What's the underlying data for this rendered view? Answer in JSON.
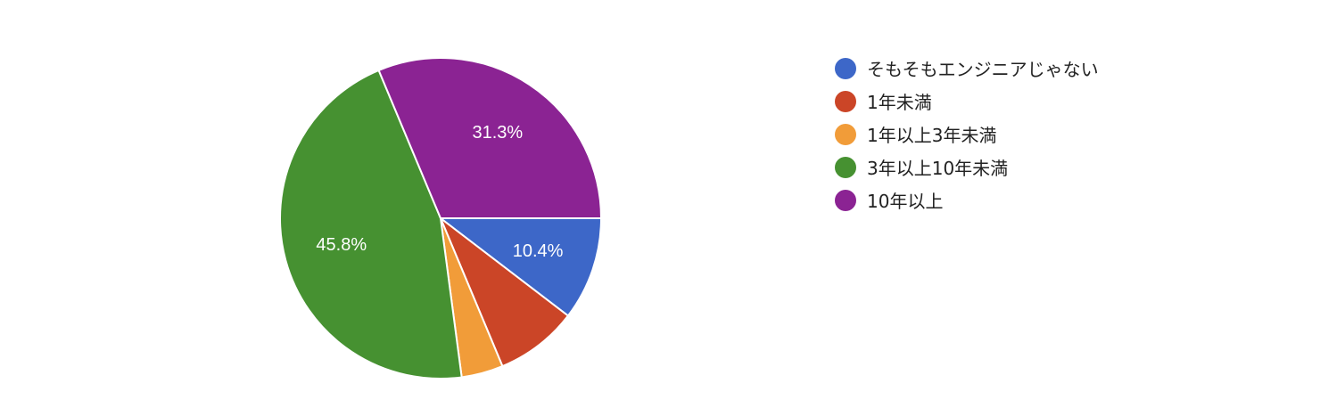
{
  "chart_data": {
    "type": "pie",
    "categories": [
      "そもそもエンジニアじゃない",
      "1年未満",
      "1年以上3年未満",
      "3年以上10年未満",
      "10年以上"
    ],
    "values": [
      10.4,
      8.3,
      4.2,
      45.8,
      31.3
    ],
    "value_labels": [
      "10.4%",
      "",
      "",
      "45.8%",
      "31.3%"
    ],
    "colors": [
      "#3d67c8",
      "#cb4527",
      "#f19c39",
      "#469131",
      "#8b2393"
    ],
    "legend_position": "right",
    "title": ""
  }
}
